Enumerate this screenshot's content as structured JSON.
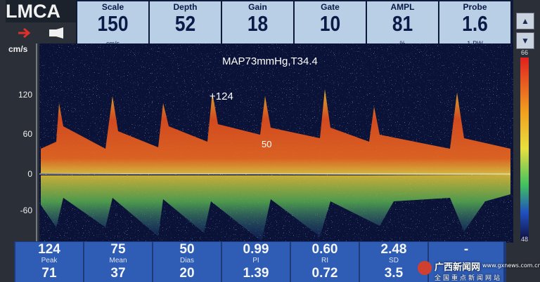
{
  "title": "LMCA",
  "header": [
    {
      "label": "Scale",
      "value": "150",
      "unit": "cm/s"
    },
    {
      "label": "Depth",
      "value": "52"
    },
    {
      "label": "Gain",
      "value": "18"
    },
    {
      "label": "Gate",
      "value": "10"
    },
    {
      "label": "AMPL",
      "value": "81",
      "unit": "%"
    },
    {
      "label": "Probe",
      "value": "1.6",
      "unit": "1-PW"
    }
  ],
  "spectrum": {
    "axis_unit": "cm/s",
    "axis_labels": [
      "120",
      "60",
      "0",
      "-60"
    ],
    "annotation": "MAP73mmHg,T34.4",
    "peak_marker": "+124",
    "dias_marker": "50",
    "colorbar_top": "66",
    "colorbar_bottom": "48"
  },
  "table": [
    {
      "top": "124",
      "label": "Peak",
      "bottom": "71"
    },
    {
      "top": "75",
      "label": "Mean",
      "bottom": "37"
    },
    {
      "top": "50",
      "label": "Dias",
      "bottom": "20"
    },
    {
      "top": "0.99",
      "label": "PI",
      "bottom": "1.39"
    },
    {
      "top": "0.60",
      "label": "RI",
      "bottom": "0.72"
    },
    {
      "top": "2.48",
      "label": "SD",
      "bottom": "3.5"
    },
    {
      "top": "-"
    }
  ],
  "watermark": {
    "name": "广西新闻网",
    "site": "www.gxnews.com.cn",
    "tagline": "全国重点新闻网站"
  }
}
